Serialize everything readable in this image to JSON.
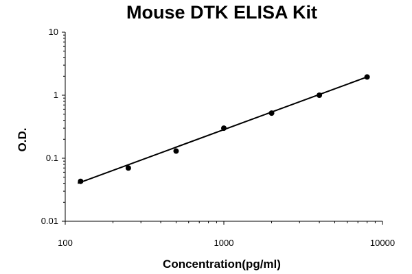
{
  "chart_data": {
    "type": "scatter",
    "title": "Mouse DTK ELISA Kit",
    "xlabel": "Concentration(pg/ml)",
    "ylabel": "O.D.",
    "xscale": "log",
    "yscale": "log",
    "xlim": [
      100,
      10000
    ],
    "ylim": [
      0.01,
      10
    ],
    "xticks": [
      100,
      1000,
      10000
    ],
    "xtick_labels": [
      "100",
      "1000",
      "10000"
    ],
    "yticks": [
      0.01,
      0.1,
      1,
      10
    ],
    "ytick_labels": [
      "0.01",
      "0.1",
      "1",
      "10"
    ],
    "grid": false,
    "legend": "none",
    "series": [
      {
        "x": [
          125,
          250,
          500,
          1000,
          2000,
          4000,
          8000
        ],
        "y": [
          0.043,
          0.07,
          0.13,
          0.3,
          0.52,
          1.0,
          1.95
        ],
        "marker": "circle",
        "color": "#000000"
      }
    ],
    "fit_line": {
      "type": "power",
      "x_range": [
        120,
        8000
      ],
      "y_range": [
        0.04,
        1.95
      ],
      "color": "#000000"
    }
  }
}
